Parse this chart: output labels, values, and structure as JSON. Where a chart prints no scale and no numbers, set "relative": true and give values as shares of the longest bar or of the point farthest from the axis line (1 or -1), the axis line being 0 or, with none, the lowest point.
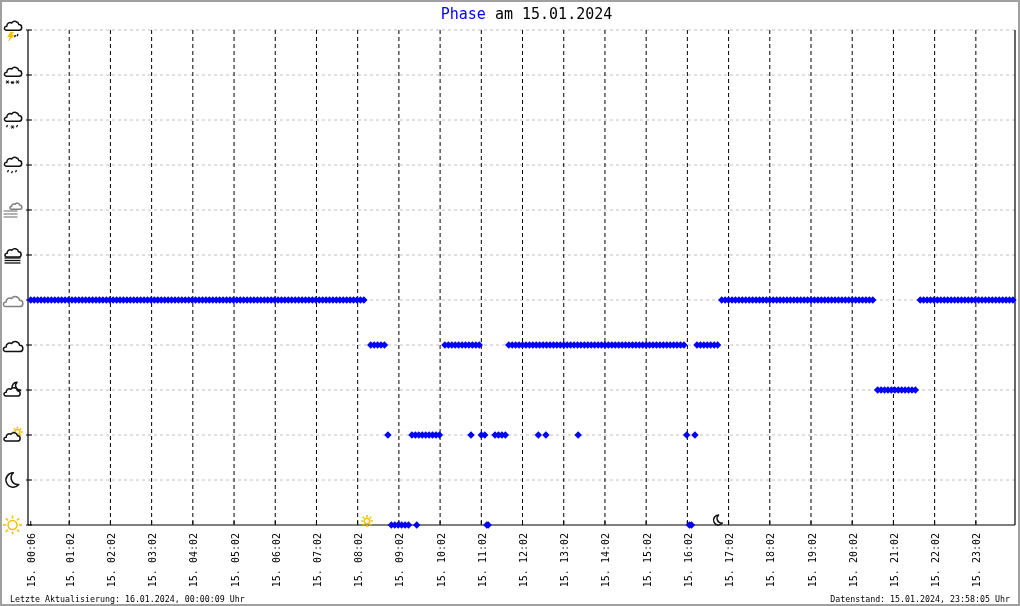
{
  "chart_data": {
    "type": "scatter",
    "title": "am 15.01.2024",
    "annotations": [
      "Letzte Aktualisierung: 16.01.2024, 00:00:09 Uhr",
      "Datenstand: 15.01.2024, 23:58:05 Uhr"
    ],
    "marker": "diamond",
    "grid": true,
    "relative": true,
    "xlim": [
      "2024-01-15T00:02",
      "2024-01-15T23:59"
    ],
    "xticks": [
      {
        "value": "2024-01-15T00:06",
        "label": "15. 00:06"
      },
      {
        "value": "2024-01-15T01:02",
        "label": "15. 01:02"
      },
      {
        "value": "2024-01-15T02:02",
        "label": "15. 02:02"
      },
      {
        "value": "2024-01-15T03:02",
        "label": "15. 03:02"
      },
      {
        "value": "2024-01-15T04:02",
        "label": "15. 04:02"
      },
      {
        "value": "2024-01-15T05:02",
        "label": "15. 05:02"
      },
      {
        "value": "2024-01-15T06:02",
        "label": "15. 06:02"
      },
      {
        "value": "2024-01-15T07:02",
        "label": "15. 07:02"
      },
      {
        "value": "2024-01-15T08:02",
        "label": "15. 08:02"
      },
      {
        "value": "2024-01-15T09:02",
        "label": "15. 09:02"
      },
      {
        "value": "2024-01-15T10:02",
        "label": "15. 10:02"
      },
      {
        "value": "2024-01-15T11:02",
        "label": "15. 11:02"
      },
      {
        "value": "2024-01-15T12:02",
        "label": "15. 12:02"
      },
      {
        "value": "2024-01-15T13:02",
        "label": "15. 13:02"
      },
      {
        "value": "2024-01-15T14:02",
        "label": "15. 14:02"
      },
      {
        "value": "2024-01-15T15:02",
        "label": "15. 15:02"
      },
      {
        "value": "2024-01-15T16:02",
        "label": "15. 16:02"
      },
      {
        "value": "2024-01-15T17:02",
        "label": "15. 17:02"
      },
      {
        "value": "2024-01-15T18:02",
        "label": "15. 18:02"
      },
      {
        "value": "2024-01-15T19:02",
        "label": "15. 19:02"
      },
      {
        "value": "2024-01-15T20:02",
        "label": "15. 20:02"
      },
      {
        "value": "2024-01-15T21:02",
        "label": "15. 21:02"
      },
      {
        "value": "2024-01-15T22:02",
        "label": "15. 22:02"
      },
      {
        "value": "2024-01-15T23:02",
        "label": "15. 23:02"
      }
    ],
    "x": [
      "2024-01-15T00:06",
      "2024-01-15T00:11",
      "2024-01-15T00:16",
      "2024-01-15T00:21",
      "2024-01-15T00:26",
      "2024-01-15T00:31",
      "2024-01-15T00:36",
      "2024-01-15T00:41",
      "2024-01-15T00:46",
      "2024-01-15T00:51",
      "2024-01-15T00:56",
      "2024-01-15T01:01",
      "2024-01-15T01:06",
      "2024-01-15T01:11",
      "2024-01-15T01:16",
      "2024-01-15T01:21",
      "2024-01-15T01:26",
      "2024-01-15T01:31",
      "2024-01-15T01:36",
      "2024-01-15T01:41",
      "2024-01-15T01:46",
      "2024-01-15T01:51",
      "2024-01-15T01:56",
      "2024-01-15T02:01",
      "2024-01-15T02:06",
      "2024-01-15T02:11",
      "2024-01-15T02:16",
      "2024-01-15T02:21",
      "2024-01-15T02:26",
      "2024-01-15T02:31",
      "2024-01-15T02:36",
      "2024-01-15T02:41",
      "2024-01-15T02:46",
      "2024-01-15T02:51",
      "2024-01-15T02:56",
      "2024-01-15T03:01",
      "2024-01-15T03:06",
      "2024-01-15T03:11",
      "2024-01-15T03:16",
      "2024-01-15T03:21",
      "2024-01-15T03:26",
      "2024-01-15T03:31",
      "2024-01-15T03:36",
      "2024-01-15T03:41",
      "2024-01-15T03:46",
      "2024-01-15T03:51",
      "2024-01-15T03:56",
      "2024-01-15T04:01",
      "2024-01-15T04:06",
      "2024-01-15T04:11",
      "2024-01-15T04:16",
      "2024-01-15T04:21",
      "2024-01-15T04:26",
      "2024-01-15T04:31",
      "2024-01-15T04:36",
      "2024-01-15T04:41",
      "2024-01-15T04:46",
      "2024-01-15T04:51",
      "2024-01-15T04:56",
      "2024-01-15T05:01",
      "2024-01-15T05:06",
      "2024-01-15T05:11",
      "2024-01-15T05:16",
      "2024-01-15T05:21",
      "2024-01-15T05:26",
      "2024-01-15T05:31",
      "2024-01-15T05:36",
      "2024-01-15T05:41",
      "2024-01-15T05:46",
      "2024-01-15T05:51",
      "2024-01-15T05:56",
      "2024-01-15T06:01",
      "2024-01-15T06:06",
      "2024-01-15T06:11",
      "2024-01-15T06:16",
      "2024-01-15T06:21",
      "2024-01-15T06:26",
      "2024-01-15T06:31",
      "2024-01-15T06:36",
      "2024-01-15T06:41",
      "2024-01-15T06:46",
      "2024-01-15T06:51",
      "2024-01-15T06:56",
      "2024-01-15T07:01",
      "2024-01-15T07:06",
      "2024-01-15T07:11",
      "2024-01-15T07:16",
      "2024-01-15T07:21",
      "2024-01-15T07:26",
      "2024-01-15T07:31",
      "2024-01-15T07:36",
      "2024-01-15T07:41",
      "2024-01-15T07:46",
      "2024-01-15T07:51",
      "2024-01-15T07:56",
      "2024-01-15T08:01",
      "2024-01-15T08:06",
      "2024-01-15T08:11",
      "2024-01-15T08:21",
      "2024-01-15T08:26",
      "2024-01-15T08:31",
      "2024-01-15T08:36",
      "2024-01-15T08:41",
      "2024-01-15T08:46",
      "2024-01-15T08:51",
      "2024-01-15T08:56",
      "2024-01-15T09:01",
      "2024-01-15T09:06",
      "2024-01-15T09:11",
      "2024-01-15T09:16",
      "2024-01-15T09:21",
      "2024-01-15T09:26",
      "2024-01-15T09:28",
      "2024-01-15T09:31",
      "2024-01-15T09:36",
      "2024-01-15T09:41",
      "2024-01-15T09:46",
      "2024-01-15T09:51",
      "2024-01-15T09:56",
      "2024-01-15T10:01",
      "2024-01-15T10:09",
      "2024-01-15T10:14",
      "2024-01-15T10:19",
      "2024-01-15T10:24",
      "2024-01-15T10:29",
      "2024-01-15T10:34",
      "2024-01-15T10:39",
      "2024-01-15T10:44",
      "2024-01-15T10:47",
      "2024-01-15T10:49",
      "2024-01-15T10:54",
      "2024-01-15T10:59",
      "2024-01-15T11:02",
      "2024-01-15T11:07",
      "2024-01-15T11:10",
      "2024-01-15T11:12",
      "2024-01-15T11:22",
      "2024-01-15T11:27",
      "2024-01-15T11:32",
      "2024-01-15T11:37",
      "2024-01-15T11:42",
      "2024-01-15T11:47",
      "2024-01-15T11:52",
      "2024-01-15T11:57",
      "2024-01-15T12:02",
      "2024-01-15T12:07",
      "2024-01-15T12:12",
      "2024-01-15T12:17",
      "2024-01-15T12:22",
      "2024-01-15T12:25",
      "2024-01-15T12:27",
      "2024-01-15T12:32",
      "2024-01-15T12:36",
      "2024-01-15T12:37",
      "2024-01-15T12:42",
      "2024-01-15T12:47",
      "2024-01-15T12:52",
      "2024-01-15T12:57",
      "2024-01-15T13:02",
      "2024-01-15T13:07",
      "2024-01-15T13:12",
      "2024-01-15T13:17",
      "2024-01-15T13:22",
      "2024-01-15T13:23",
      "2024-01-15T13:27",
      "2024-01-15T13:32",
      "2024-01-15T13:37",
      "2024-01-15T13:42",
      "2024-01-15T13:47",
      "2024-01-15T13:52",
      "2024-01-15T13:57",
      "2024-01-15T14:02",
      "2024-01-15T14:07",
      "2024-01-15T14:12",
      "2024-01-15T14:17",
      "2024-01-15T14:22",
      "2024-01-15T14:27",
      "2024-01-15T14:32",
      "2024-01-15T14:37",
      "2024-01-15T14:42",
      "2024-01-15T14:47",
      "2024-01-15T14:52",
      "2024-01-15T14:57",
      "2024-01-15T15:02",
      "2024-01-15T15:07",
      "2024-01-15T15:12",
      "2024-01-15T15:17",
      "2024-01-15T15:22",
      "2024-01-15T15:27",
      "2024-01-15T15:32",
      "2024-01-15T15:37",
      "2024-01-15T15:42",
      "2024-01-15T15:47",
      "2024-01-15T15:52",
      "2024-01-15T15:57",
      "2024-01-15T16:01",
      "2024-01-15T16:05",
      "2024-01-15T16:08",
      "2024-01-15T16:13",
      "2024-01-15T16:16",
      "2024-01-15T16:21",
      "2024-01-15T16:26",
      "2024-01-15T16:31",
      "2024-01-15T16:36",
      "2024-01-15T16:41",
      "2024-01-15T16:46",
      "2024-01-15T16:52",
      "2024-01-15T16:57",
      "2024-01-15T17:02",
      "2024-01-15T17:07",
      "2024-01-15T17:12",
      "2024-01-15T17:17",
      "2024-01-15T17:22",
      "2024-01-15T17:27",
      "2024-01-15T17:32",
      "2024-01-15T17:37",
      "2024-01-15T17:42",
      "2024-01-15T17:47",
      "2024-01-15T17:52",
      "2024-01-15T17:57",
      "2024-01-15T18:02",
      "2024-01-15T18:07",
      "2024-01-15T18:12",
      "2024-01-15T18:17",
      "2024-01-15T18:22",
      "2024-01-15T18:27",
      "2024-01-15T18:32",
      "2024-01-15T18:37",
      "2024-01-15T18:42",
      "2024-01-15T18:47",
      "2024-01-15T18:52",
      "2024-01-15T18:57",
      "2024-01-15T19:02",
      "2024-01-15T19:07",
      "2024-01-15T19:12",
      "2024-01-15T19:17",
      "2024-01-15T19:22",
      "2024-01-15T19:27",
      "2024-01-15T19:32",
      "2024-01-15T19:37",
      "2024-01-15T19:42",
      "2024-01-15T19:47",
      "2024-01-15T19:52",
      "2024-01-15T19:57",
      "2024-01-15T20:02",
      "2024-01-15T20:07",
      "2024-01-15T20:12",
      "2024-01-15T20:17",
      "2024-01-15T20:22",
      "2024-01-15T20:27",
      "2024-01-15T20:32",
      "2024-01-15T20:39",
      "2024-01-15T20:44",
      "2024-01-15T20:49",
      "2024-01-15T20:54",
      "2024-01-15T20:59",
      "2024-01-15T21:04",
      "2024-01-15T21:09",
      "2024-01-15T21:14",
      "2024-01-15T21:19",
      "2024-01-15T21:24",
      "2024-01-15T21:29",
      "2024-01-15T21:34",
      "2024-01-15T21:41",
      "2024-01-15T21:46",
      "2024-01-15T21:51",
      "2024-01-15T21:56",
      "2024-01-15T22:01",
      "2024-01-15T22:06",
      "2024-01-15T22:11",
      "2024-01-15T22:16",
      "2024-01-15T22:21",
      "2024-01-15T22:26",
      "2024-01-15T22:31",
      "2024-01-15T22:36",
      "2024-01-15T22:41",
      "2024-01-15T22:46",
      "2024-01-15T22:51",
      "2024-01-15T22:56",
      "2024-01-15T23:01",
      "2024-01-15T23:06",
      "2024-01-15T23:11",
      "2024-01-15T23:16",
      "2024-01-15T23:21",
      "2024-01-15T23:26",
      "2024-01-15T23:31",
      "2024-01-15T23:36",
      "2024-01-15T23:41",
      "2024-01-15T23:46",
      "2024-01-15T23:51",
      "2024-01-15T23:56"
    ],
    "series": [
      {
        "name": "Phase",
        "color": "#0000ff",
        "values": [
          1,
          1,
          1,
          1,
          1,
          1,
          1,
          1,
          1,
          1,
          1,
          1,
          1,
          1,
          1,
          1,
          1,
          1,
          1,
          1,
          1,
          1,
          1,
          1,
          1,
          1,
          1,
          1,
          1,
          1,
          1,
          1,
          1,
          1,
          1,
          1,
          1,
          1,
          1,
          1,
          1,
          1,
          1,
          1,
          1,
          1,
          1,
          1,
          1,
          1,
          1,
          1,
          1,
          1,
          1,
          1,
          1,
          1,
          1,
          1,
          1,
          1,
          1,
          1,
          1,
          1,
          1,
          1,
          1,
          1,
          1,
          1,
          1,
          1,
          1,
          1,
          1,
          1,
          1,
          1,
          1,
          1,
          1,
          1,
          1,
          1,
          1,
          1,
          1,
          1,
          1,
          1,
          1,
          1,
          1,
          1,
          1,
          1,
          0.8,
          0.8,
          0.8,
          0.8,
          0.8,
          0.4,
          0,
          0,
          0,
          0,
          0,
          0,
          0.4,
          0.4,
          0,
          0.4,
          0.4,
          0.4,
          0.4,
          0.4,
          0.4,
          0.4,
          0.8,
          0.8,
          0.8,
          0.8,
          0.8,
          0.8,
          0.8,
          0.8,
          0.4,
          0.8,
          0.8,
          0.8,
          0.4,
          0.4,
          0,
          0,
          0.4,
          0.4,
          0.4,
          0.4,
          0.8,
          0.8,
          0.8,
          0.8,
          0.8,
          0.8,
          0.8,
          0.8,
          0.8,
          0.4,
          0.8,
          0.8,
          0.4,
          0.8,
          0.8,
          0.8,
          0.8,
          0.8,
          0.8,
          0.8,
          0.8,
          0.8,
          0.8,
          0.4,
          0.8,
          0.8,
          0.8,
          0.8,
          0.8,
          0.8,
          0.8,
          0.8,
          0.8,
          0.8,
          0.8,
          0.8,
          0.8,
          0.8,
          0.8,
          0.8,
          0.8,
          0.8,
          0.8,
          0.8,
          0.8,
          0.8,
          0.8,
          0.8,
          0.8,
          0.8,
          0.8,
          0.8,
          0.8,
          0.8,
          0.8,
          0.4,
          0,
          0,
          0.4,
          0.8,
          0.8,
          0.8,
          0.8,
          0.8,
          0.8,
          0.8,
          1,
          1,
          1,
          1,
          1,
          1,
          1,
          1,
          1,
          1,
          1,
          1,
          1,
          1,
          1,
          1,
          1,
          1,
          1,
          1,
          1,
          1,
          1,
          1,
          1,
          1,
          1,
          1,
          1,
          1,
          1,
          1,
          1,
          1,
          1,
          1,
          1,
          1,
          1,
          1,
          1,
          1,
          1,
          1,
          1,
          0.6,
          0.6,
          0.6,
          0.6,
          0.6,
          0.6,
          0.6,
          0.6,
          0.6,
          0.6,
          0.6,
          0.6,
          1,
          1,
          1,
          1,
          1,
          1,
          1,
          1,
          1,
          1,
          1,
          1,
          1,
          1,
          1,
          1,
          1,
          1,
          1,
          1,
          1,
          1,
          1,
          1,
          1,
          1,
          1,
          1
        ]
      }
    ]
  }
}
